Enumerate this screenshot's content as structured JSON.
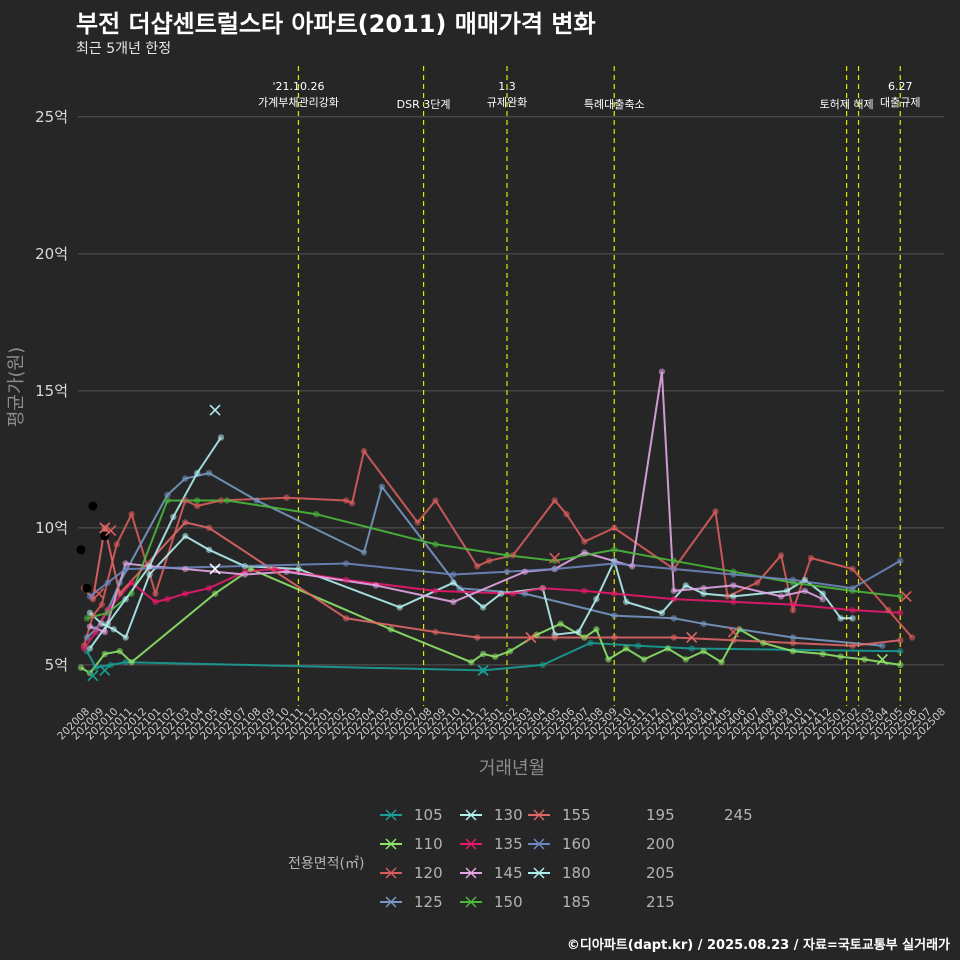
{
  "header": {
    "title": "부전 더샵센트럴스타 아파트(2011) 매매가격 변화",
    "subtitle": "최근 5개년 한정"
  },
  "footer": {
    "credit": "©디아파트(dapt.kr) / 2025.08.23 / 자료=국토교통부 실거래가"
  },
  "chart_data": {
    "type": "line",
    "title": "부전 더샵센트럴스타 아파트(2011) 매매가격 변화",
    "xlabel": "거래년월",
    "ylabel": "평균가(원)",
    "ylim": [
      3.5,
      27
    ],
    "y_ticks": [
      {
        "v": 5,
        "label": "5억"
      },
      {
        "v": 10,
        "label": "10억"
      },
      {
        "v": 15,
        "label": "15억"
      },
      {
        "v": 20,
        "label": "20억"
      },
      {
        "v": 25,
        "label": "25억"
      }
    ],
    "x_categories": [
      "202008",
      "202009",
      "202010",
      "202011",
      "202012",
      "202101",
      "202102",
      "202103",
      "202104",
      "202105",
      "202106",
      "202107",
      "202108",
      "202109",
      "202110",
      "202111",
      "202112",
      "202201",
      "202202",
      "202203",
      "202204",
      "202205",
      "202206",
      "202207",
      "202208",
      "202209",
      "202210",
      "202211",
      "202212",
      "202301",
      "202302",
      "202303",
      "202304",
      "202305",
      "202306",
      "202307",
      "202308",
      "202309",
      "202310",
      "202311",
      "202312",
      "202401",
      "202402",
      "202403",
      "202404",
      "202405",
      "202406",
      "202407",
      "202408",
      "202409",
      "202410",
      "202411",
      "202412",
      "202501",
      "202502",
      "202503",
      "202504",
      "202505",
      "202506",
      "202507",
      "202508"
    ],
    "events": [
      {
        "x": 7.4,
        "lines": [
          "'21.10.26",
          "가계부채관리강화"
        ]
      },
      {
        "x": 11.6,
        "lines": [
          "DSR 3단계"
        ]
      },
      {
        "x": 14.4,
        "lines": [
          "1.3",
          "규제완화"
        ]
      },
      {
        "x": 18.0,
        "lines": [
          "특례대출축소"
        ]
      },
      {
        "x": 25.8,
        "lines": [
          "토허제 해제"
        ]
      },
      {
        "x": 26.2,
        "lines": []
      },
      {
        "x": 27.6,
        "lines": [
          "6.27",
          "대출규제"
        ]
      }
    ],
    "legend_title": "전용면적(㎡)",
    "series": [
      {
        "name": "105",
        "color": "#1a9e97",
        "points": [
          [
            0.3,
            5.5
          ],
          [
            0.6,
            4.9
          ],
          [
            1.1,
            5.0
          ],
          [
            1.6,
            5.1
          ],
          [
            13.6,
            4.8
          ],
          [
            15.6,
            5.0
          ],
          [
            17.2,
            5.8
          ],
          [
            18.8,
            5.7
          ],
          [
            20.6,
            5.6
          ],
          [
            27.6,
            5.5
          ]
        ]
      },
      {
        "name": "110",
        "color": "#8ee46a",
        "points": [
          [
            0.1,
            4.9
          ],
          [
            0.4,
            4.7
          ],
          [
            0.9,
            5.4
          ],
          [
            1.4,
            5.5
          ],
          [
            1.8,
            5.1
          ],
          [
            4.6,
            7.6
          ],
          [
            5.8,
            8.5
          ],
          [
            10.5,
            6.3
          ],
          [
            13.2,
            5.1
          ],
          [
            13.6,
            5.4
          ],
          [
            14.0,
            5.3
          ],
          [
            14.5,
            5.5
          ],
          [
            15.4,
            6.1
          ],
          [
            16.2,
            6.5
          ],
          [
            17.0,
            6.0
          ],
          [
            17.4,
            6.3
          ],
          [
            17.8,
            5.2
          ],
          [
            18.4,
            5.6
          ],
          [
            19.0,
            5.2
          ],
          [
            19.8,
            5.6
          ],
          [
            20.4,
            5.2
          ],
          [
            21.0,
            5.5
          ],
          [
            21.6,
            5.1
          ],
          [
            22.2,
            6.3
          ],
          [
            23.0,
            5.8
          ],
          [
            24.0,
            5.5
          ],
          [
            25.0,
            5.4
          ],
          [
            25.6,
            5.3
          ],
          [
            26.4,
            5.2
          ],
          [
            27.6,
            5.0
          ]
        ]
      },
      {
        "name": "120",
        "color": "#d95c5c",
        "points": [
          [
            0.2,
            5.7
          ],
          [
            0.5,
            6.8
          ],
          [
            0.8,
            7.2
          ],
          [
            1.3,
            9.4
          ],
          [
            1.8,
            10.5
          ],
          [
            2.6,
            7.6
          ],
          [
            3.6,
            11.0
          ],
          [
            4.0,
            10.8
          ],
          [
            4.8,
            11.0
          ],
          [
            7.0,
            11.1
          ],
          [
            9.0,
            11.0
          ],
          [
            9.2,
            10.9
          ],
          [
            9.6,
            12.8
          ],
          [
            11.4,
            10.2
          ],
          [
            12.0,
            11.0
          ],
          [
            13.4,
            8.6
          ],
          [
            13.8,
            8.8
          ],
          [
            14.6,
            9.0
          ],
          [
            16.0,
            11.0
          ],
          [
            16.4,
            10.5
          ],
          [
            17.0,
            9.5
          ],
          [
            18.0,
            10.0
          ],
          [
            20.0,
            8.5
          ],
          [
            21.4,
            10.6
          ],
          [
            21.8,
            7.5
          ],
          [
            22.8,
            8.0
          ],
          [
            23.6,
            9.0
          ],
          [
            24.0,
            7.0
          ],
          [
            24.6,
            8.9
          ],
          [
            26.0,
            8.5
          ],
          [
            27.2,
            7.0
          ],
          [
            28.0,
            6.0
          ]
        ]
      },
      {
        "name": "125",
        "color": "#7799c4",
        "points": [
          [
            0.3,
            6.0
          ],
          [
            0.6,
            6.3
          ],
          [
            1.0,
            7.0
          ],
          [
            1.4,
            8.0
          ],
          [
            3.0,
            11.2
          ],
          [
            3.6,
            11.8
          ],
          [
            4.4,
            12.0
          ],
          [
            6.0,
            11.0
          ],
          [
            9.6,
            9.1
          ],
          [
            10.2,
            11.5
          ],
          [
            12.8,
            7.8
          ],
          [
            15.0,
            7.6
          ],
          [
            18.0,
            6.8
          ],
          [
            20.0,
            6.7
          ],
          [
            21.0,
            6.5
          ],
          [
            24.0,
            6.0
          ],
          [
            27.0,
            5.7
          ]
        ]
      },
      {
        "name": "130",
        "color": "#b4eff0",
        "points": [
          [
            0.4,
            6.9
          ],
          [
            0.8,
            6.5
          ],
          [
            1.2,
            6.3
          ],
          [
            1.6,
            6.0
          ],
          [
            2.4,
            8.3
          ],
          [
            3.6,
            9.7
          ],
          [
            4.4,
            9.2
          ],
          [
            5.6,
            8.6
          ],
          [
            7.4,
            8.5
          ],
          [
            10.8,
            7.1
          ],
          [
            12.6,
            8.0
          ],
          [
            13.6,
            7.1
          ],
          [
            14.2,
            7.6
          ],
          [
            15.6,
            7.8
          ],
          [
            16.0,
            6.1
          ],
          [
            16.8,
            6.2
          ],
          [
            17.4,
            7.4
          ],
          [
            18.0,
            8.8
          ],
          [
            18.4,
            7.3
          ],
          [
            19.6,
            6.9
          ],
          [
            20.4,
            7.9
          ],
          [
            21.0,
            7.6
          ],
          [
            22.0,
            7.5
          ],
          [
            23.8,
            7.7
          ],
          [
            24.4,
            8.1
          ],
          [
            25.0,
            7.6
          ],
          [
            25.6,
            6.7
          ],
          [
            26.0,
            6.7
          ]
        ]
      },
      {
        "name": "135",
        "color": "#e8196b",
        "points": [
          [
            0.2,
            5.6
          ],
          [
            0.6,
            6.2
          ],
          [
            1.0,
            7.0
          ],
          [
            1.8,
            8.0
          ],
          [
            2.6,
            7.3
          ],
          [
            3.0,
            7.4
          ],
          [
            3.6,
            7.6
          ],
          [
            4.4,
            7.8
          ],
          [
            5.6,
            8.4
          ],
          [
            6.6,
            8.5
          ],
          [
            9.0,
            8.1
          ],
          [
            12.0,
            7.7
          ],
          [
            14.6,
            7.6
          ],
          [
            15.6,
            7.8
          ],
          [
            17.0,
            7.7
          ],
          [
            18.0,
            7.6
          ],
          [
            20.0,
            7.4
          ],
          [
            22.0,
            7.3
          ],
          [
            24.0,
            7.2
          ],
          [
            26.0,
            7.0
          ],
          [
            27.6,
            6.9
          ]
        ]
      },
      {
        "name": "145",
        "color": "#e2a6e6",
        "points": [
          [
            0.4,
            6.4
          ],
          [
            0.9,
            6.2
          ],
          [
            1.6,
            8.7
          ],
          [
            2.4,
            8.6
          ],
          [
            3.6,
            8.5
          ],
          [
            5.6,
            8.3
          ],
          [
            7.0,
            8.4
          ],
          [
            10.0,
            7.9
          ],
          [
            12.6,
            7.3
          ],
          [
            15.0,
            8.4
          ],
          [
            16.0,
            8.5
          ],
          [
            17.0,
            9.1
          ],
          [
            18.6,
            8.6
          ],
          [
            19.6,
            15.7
          ],
          [
            20.0,
            7.7
          ],
          [
            21.0,
            7.8
          ],
          [
            22.0,
            7.9
          ],
          [
            23.6,
            7.5
          ],
          [
            24.4,
            7.7
          ],
          [
            25.0,
            7.4
          ]
        ]
      },
      {
        "name": "150",
        "color": "#4bb83b",
        "points": [
          [
            0.3,
            6.7
          ],
          [
            1.0,
            6.9
          ],
          [
            1.8,
            7.6
          ],
          [
            3.0,
            11.0
          ],
          [
            4.0,
            11.0
          ],
          [
            5.0,
            11.0
          ],
          [
            8.0,
            10.5
          ],
          [
            12.0,
            9.4
          ],
          [
            14.4,
            9.0
          ],
          [
            16.0,
            8.8
          ],
          [
            18.0,
            9.2
          ],
          [
            20.0,
            8.8
          ],
          [
            22.0,
            8.4
          ],
          [
            24.0,
            8.0
          ],
          [
            26.0,
            7.7
          ],
          [
            27.6,
            7.5
          ]
        ]
      },
      {
        "name": "155",
        "color": "#e06666",
        "points": [
          [
            0.2,
            7.8
          ],
          [
            0.5,
            7.4
          ],
          [
            0.9,
            10.0
          ],
          [
            1.4,
            7.6
          ],
          [
            3.6,
            10.2
          ],
          [
            4.4,
            10.0
          ],
          [
            9.0,
            6.7
          ],
          [
            12.0,
            6.2
          ],
          [
            13.4,
            6.0
          ],
          [
            16.0,
            6.0
          ],
          [
            18.0,
            6.0
          ],
          [
            20.0,
            6.0
          ],
          [
            22.0,
            5.9
          ],
          [
            24.0,
            5.8
          ],
          [
            26.0,
            5.7
          ],
          [
            27.6,
            5.9
          ]
        ]
      },
      {
        "name": "160",
        "color": "#6f87c0",
        "points": [
          [
            0.4,
            7.5
          ],
          [
            1.0,
            8.0
          ],
          [
            1.6,
            8.5
          ],
          [
            9.0,
            8.7
          ],
          [
            12.6,
            8.3
          ],
          [
            14.4,
            8.4
          ],
          [
            16.0,
            8.5
          ],
          [
            18.0,
            8.7
          ],
          [
            20.0,
            8.5
          ],
          [
            22.0,
            8.3
          ],
          [
            24.0,
            8.1
          ],
          [
            26.0,
            7.8
          ],
          [
            27.6,
            8.8
          ]
        ]
      },
      {
        "name": "180",
        "color": "#b0ecec",
        "points": [
          [
            0.4,
            5.6
          ],
          [
            1.0,
            6.5
          ],
          [
            1.6,
            7.4
          ],
          [
            2.4,
            8.6
          ],
          [
            3.2,
            10.4
          ],
          [
            4.0,
            12.0
          ],
          [
            4.8,
            13.3
          ]
        ]
      }
    ],
    "extra_legend_labels": [
      "185",
      "195",
      "200",
      "205",
      "215",
      "245"
    ],
    "black_points": [
      [
        0.1,
        9.2
      ],
      [
        0.5,
        10.8
      ],
      [
        0.9,
        9.7
      ],
      [
        0.3,
        7.8
      ]
    ],
    "x_markers": [
      {
        "x": 0.5,
        "y": 4.6,
        "color": "#1a9e97"
      },
      {
        "x": 0.9,
        "y": 4.8,
        "color": "#1a9e97"
      },
      {
        "x": 0.7,
        "y": 7.6,
        "color": "#d95c5c"
      },
      {
        "x": 0.9,
        "y": 10.0,
        "color": "#e06666"
      },
      {
        "x": 1.1,
        "y": 9.9,
        "color": "#d95c5c"
      },
      {
        "x": 4.6,
        "y": 14.3,
        "color": "#b0ecec"
      },
      {
        "x": 4.6,
        "y": 8.5,
        "color": "#ffffff"
      },
      {
        "x": 13.6,
        "y": 4.8,
        "color": "#1a9e97"
      },
      {
        "x": 16.0,
        "y": 8.9,
        "color": "#d95c5c"
      },
      {
        "x": 15.2,
        "y": 6.0,
        "color": "#e06666"
      },
      {
        "x": 20.6,
        "y": 6.0,
        "color": "#e06666"
      },
      {
        "x": 22.0,
        "y": 6.2,
        "color": "#d95c5c"
      },
      {
        "x": 27.0,
        "y": 5.2,
        "color": "#8ee46a"
      },
      {
        "x": 27.8,
        "y": 7.5,
        "color": "#d95c5c"
      }
    ]
  }
}
